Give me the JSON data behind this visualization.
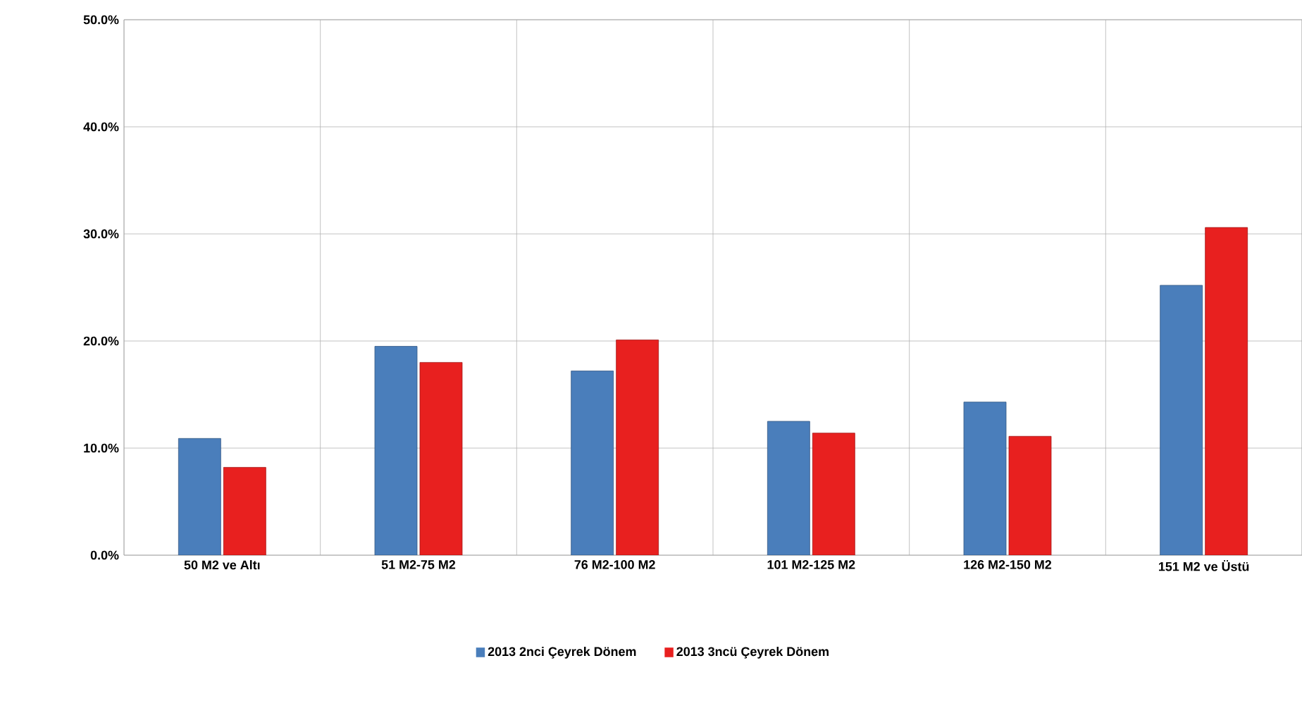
{
  "chart_data": {
    "type": "bar",
    "categories": [
      "50 M2 ve Altı",
      "51 M2-75 M2",
      "76 M2-100 M2",
      "101 M2-125 M2",
      "126 M2-150 M2",
      "151 M2 ve Üstü"
    ],
    "series": [
      {
        "name": "2013 2nci Çeyrek Dönem",
        "color": "#4a7ebb",
        "values": [
          10.9,
          19.5,
          17.2,
          12.5,
          14.3,
          25.2
        ]
      },
      {
        "name": "2013 3ncü Çeyrek Dönem",
        "color": "#e8201f",
        "values": [
          8.2,
          18.0,
          20.1,
          11.4,
          11.1,
          30.6
        ]
      }
    ],
    "ylim": [
      0,
      50
    ],
    "yticks": [
      {
        "value": 0,
        "label": "0.0%"
      },
      {
        "value": 10,
        "label": "10.0%"
      },
      {
        "value": 20,
        "label": "20.0%"
      },
      {
        "value": 30,
        "label": "30.0%"
      },
      {
        "value": 40,
        "label": "40.0%"
      },
      {
        "value": 50,
        "label": "50.0%"
      }
    ],
    "grid": true,
    "legend": "bottom"
  }
}
